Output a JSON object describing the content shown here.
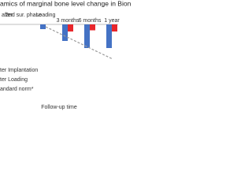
{
  "chart_data": {
    "type": "bar",
    "title": "amics of marginal bone level change in Bion",
    "x_label": "Follow-up time",
    "categories": [
      "after",
      "2nd sur. phase",
      "Loading",
      "3 months",
      "6 months",
      "1 year"
    ],
    "series": [
      {
        "name": "ter Implantation",
        "color": "#4472c4",
        "values": [
          null,
          null,
          -0.2,
          -0.7,
          -1.0,
          -1.0
        ]
      },
      {
        "name": "ter Loading",
        "color": "#e8262b",
        "values": [
          null,
          null,
          null,
          -0.3,
          -0.25,
          -0.3
        ]
      },
      {
        "name": "andard norm*",
        "color": "#9a9a9a",
        "type": "line",
        "dashed": true,
        "values": [
          null,
          null,
          -0.1,
          -0.55,
          -1.0,
          -1.45
        ]
      }
    ],
    "ylim": [
      -1.6,
      0.2
    ]
  }
}
